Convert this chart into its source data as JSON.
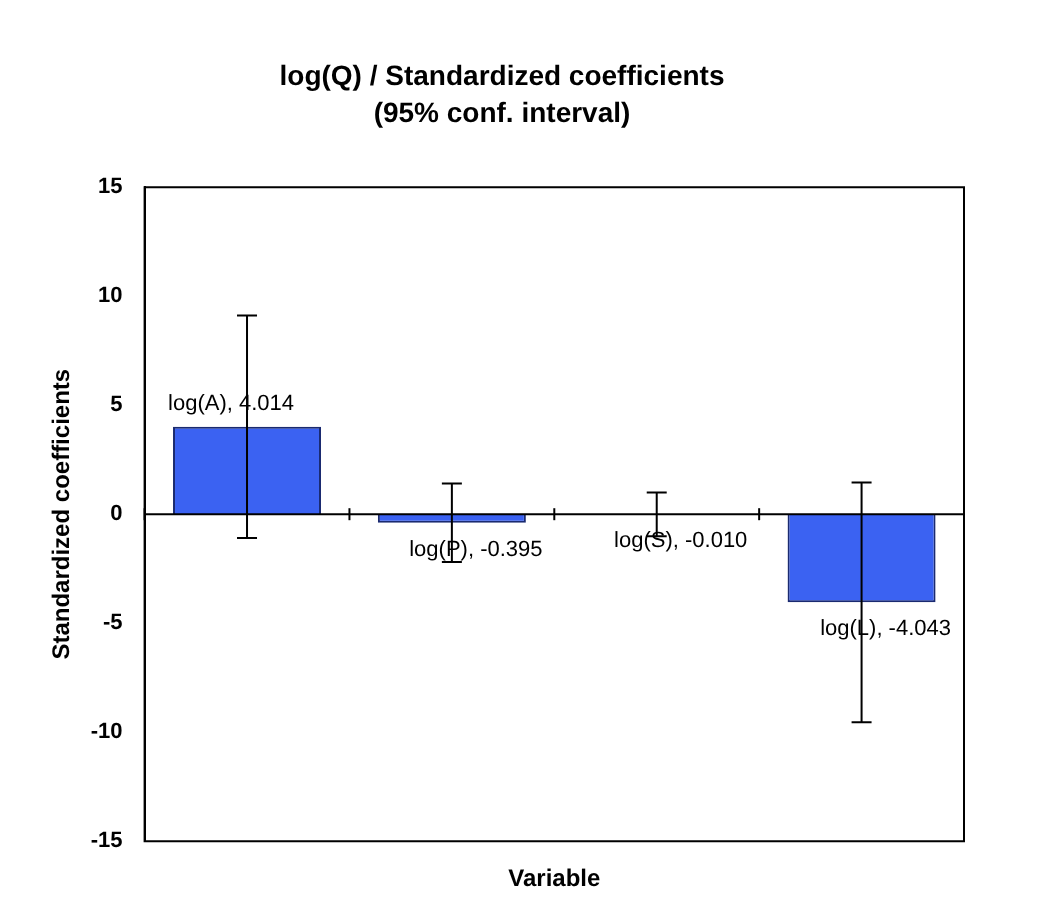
{
  "chart_data": {
    "type": "bar",
    "title": "log(Q) / Standardized coefficients",
    "subtitle": "(95% conf. interval)",
    "xlabel": "Variable",
    "ylabel": "Standardized coefficients",
    "categories": [
      null,
      null,
      null,
      null
    ],
    "values": [
      4.014,
      -0.395,
      -0.01,
      -4.043
    ],
    "errors": [
      5.1,
      1.8,
      1.0,
      5.5
    ],
    "value_labels": [
      "log(A), 4.014",
      "log(P), -0.395",
      "log(S), -0.010",
      "log(L), -4.043"
    ],
    "color": "#3b62f2",
    "ylim": [
      -15,
      15
    ],
    "yticks": [
      -15,
      -10,
      -5,
      0,
      5,
      10,
      15
    ]
  }
}
